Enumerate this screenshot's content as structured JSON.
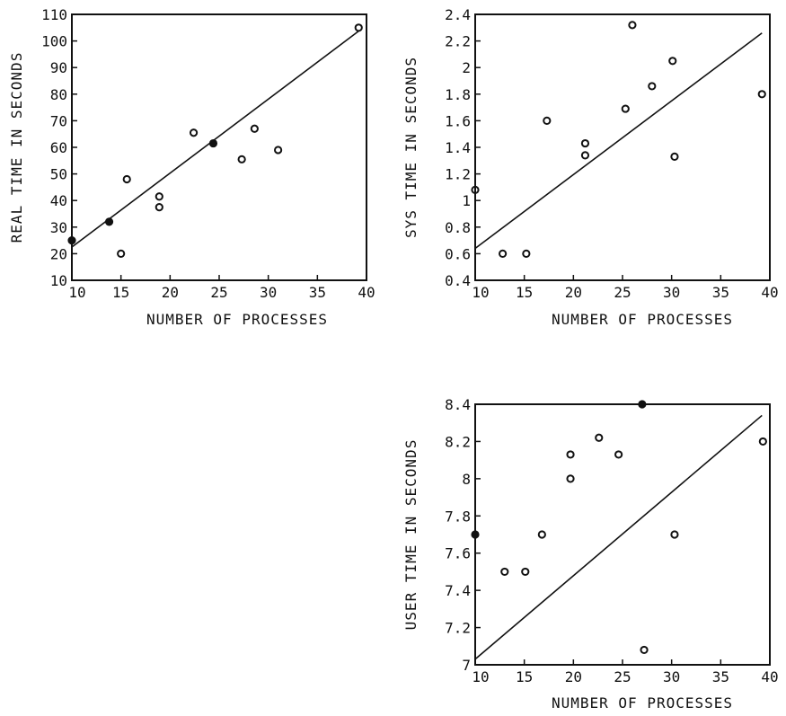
{
  "chart_data": [
    {
      "id": "real",
      "type": "scatter",
      "xlabel": "NUMBER OF PROCESSES",
      "ylabel": "REAL TIME IN SECONDS",
      "xlim": [
        10,
        40
      ],
      "ylim": [
        10,
        110
      ],
      "xticks": [
        "10",
        "15",
        "20",
        "25",
        "30",
        "35",
        "40"
      ],
      "yticks": [
        "10",
        "20",
        "30",
        "40",
        "50",
        "60",
        "70",
        "80",
        "90",
        "100",
        "110"
      ],
      "xtick_values": [
        10,
        15,
        20,
        25,
        30,
        35,
        40
      ],
      "ytick_values": [
        10,
        20,
        30,
        40,
        50,
        60,
        70,
        80,
        90,
        100,
        110
      ],
      "points": [
        {
          "x": 10,
          "y": 25,
          "filled": true
        },
        {
          "x": 13.8,
          "y": 32,
          "filled": true
        },
        {
          "x": 15,
          "y": 20
        },
        {
          "x": 15.6,
          "y": 48
        },
        {
          "x": 18.9,
          "y": 41.5
        },
        {
          "x": 18.9,
          "y": 37.5
        },
        {
          "x": 22.4,
          "y": 65.5
        },
        {
          "x": 24.4,
          "y": 61.5,
          "filled": true
        },
        {
          "x": 27.3,
          "y": 55.5
        },
        {
          "x": 28.6,
          "y": 67
        },
        {
          "x": 31,
          "y": 59
        },
        {
          "x": 39.2,
          "y": 105
        }
      ],
      "fit_line": {
        "x": [
          10,
          39.2
        ],
        "y": [
          22.5,
          103.7
        ]
      },
      "grid": false
    },
    {
      "id": "sys",
      "type": "scatter",
      "xlabel": "NUMBER OF PROCESSES",
      "ylabel": "SYS TIME IN SECONDS",
      "xlim": [
        10,
        40
      ],
      "ylim": [
        0.4,
        2.4
      ],
      "xticks": [
        "10",
        "15",
        "20",
        "25",
        "30",
        "35",
        "40"
      ],
      "yticks": [
        "0.4",
        "0.6",
        "0.8",
        "1",
        "1.2",
        "1.4",
        "1.6",
        "1.8",
        "2",
        "2.2",
        "2.4"
      ],
      "xtick_values": [
        10,
        15,
        20,
        25,
        30,
        35,
        40
      ],
      "ytick_values": [
        0.4,
        0.6,
        0.8,
        1.0,
        1.2,
        1.4,
        1.6,
        1.8,
        2.0,
        2.2,
        2.4
      ],
      "points": [
        {
          "x": 10,
          "y": 1.08
        },
        {
          "x": 12.8,
          "y": 0.6
        },
        {
          "x": 15.2,
          "y": 0.6
        },
        {
          "x": 17.3,
          "y": 1.6
        },
        {
          "x": 21.2,
          "y": 1.43
        },
        {
          "x": 21.2,
          "y": 1.34
        },
        {
          "x": 25.3,
          "y": 1.69
        },
        {
          "x": 26,
          "y": 2.32
        },
        {
          "x": 28,
          "y": 1.86
        },
        {
          "x": 30.1,
          "y": 2.05
        },
        {
          "x": 30.3,
          "y": 1.33
        },
        {
          "x": 39.2,
          "y": 1.8
        }
      ],
      "fit_line": {
        "x": [
          10,
          39.2
        ],
        "y": [
          0.64,
          2.26
        ]
      },
      "grid": false
    },
    {
      "id": "user",
      "type": "scatter",
      "xlabel": "NUMBER OF PROCESSES",
      "ylabel": "USER TIME IN SECONDS",
      "xlim": [
        10,
        40
      ],
      "ylim": [
        7,
        8.4
      ],
      "xticks": [
        "10",
        "15",
        "20",
        "25",
        "30",
        "35",
        "40"
      ],
      "yticks": [
        "7",
        "7.2",
        "7.4",
        "7.6",
        "7.8",
        "8",
        "8.2",
        "8.4"
      ],
      "xtick_values": [
        10,
        15,
        20,
        25,
        30,
        35,
        40
      ],
      "ytick_values": [
        7.0,
        7.2,
        7.4,
        7.6,
        7.8,
        8.0,
        8.2,
        8.4
      ],
      "points": [
        {
          "x": 10,
          "y": 7.7,
          "filled": true
        },
        {
          "x": 13,
          "y": 7.5
        },
        {
          "x": 15.1,
          "y": 7.5
        },
        {
          "x": 16.8,
          "y": 7.7
        },
        {
          "x": 19.7,
          "y": 8.13
        },
        {
          "x": 19.7,
          "y": 8.0
        },
        {
          "x": 22.6,
          "y": 8.22
        },
        {
          "x": 24.6,
          "y": 8.13
        },
        {
          "x": 27,
          "y": 8.4,
          "filled": true
        },
        {
          "x": 27.2,
          "y": 7.08
        },
        {
          "x": 30.3,
          "y": 7.7
        },
        {
          "x": 39.3,
          "y": 8.2
        }
      ],
      "fit_line": {
        "x": [
          10,
          39.2
        ],
        "y": [
          7.03,
          8.34
        ]
      },
      "grid": false
    }
  ]
}
